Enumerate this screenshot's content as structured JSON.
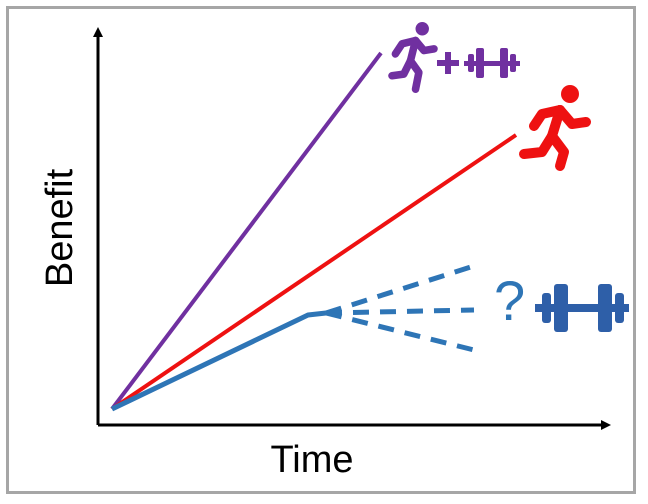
{
  "axes": {
    "x_label": "Time",
    "y_label": "Benefit"
  },
  "series": [
    {
      "id": "combined",
      "icons": [
        "running-icon",
        "plus-icon",
        "dumbbell-icon"
      ],
      "color": "#7030a0"
    },
    {
      "id": "aerobic",
      "icons": [
        "running-icon"
      ],
      "color": "#ee1111"
    },
    {
      "id": "resistance",
      "icons": [
        "dumbbell-icon"
      ],
      "color": "#2e75b6"
    }
  ],
  "uncertainty_marker": "?"
}
